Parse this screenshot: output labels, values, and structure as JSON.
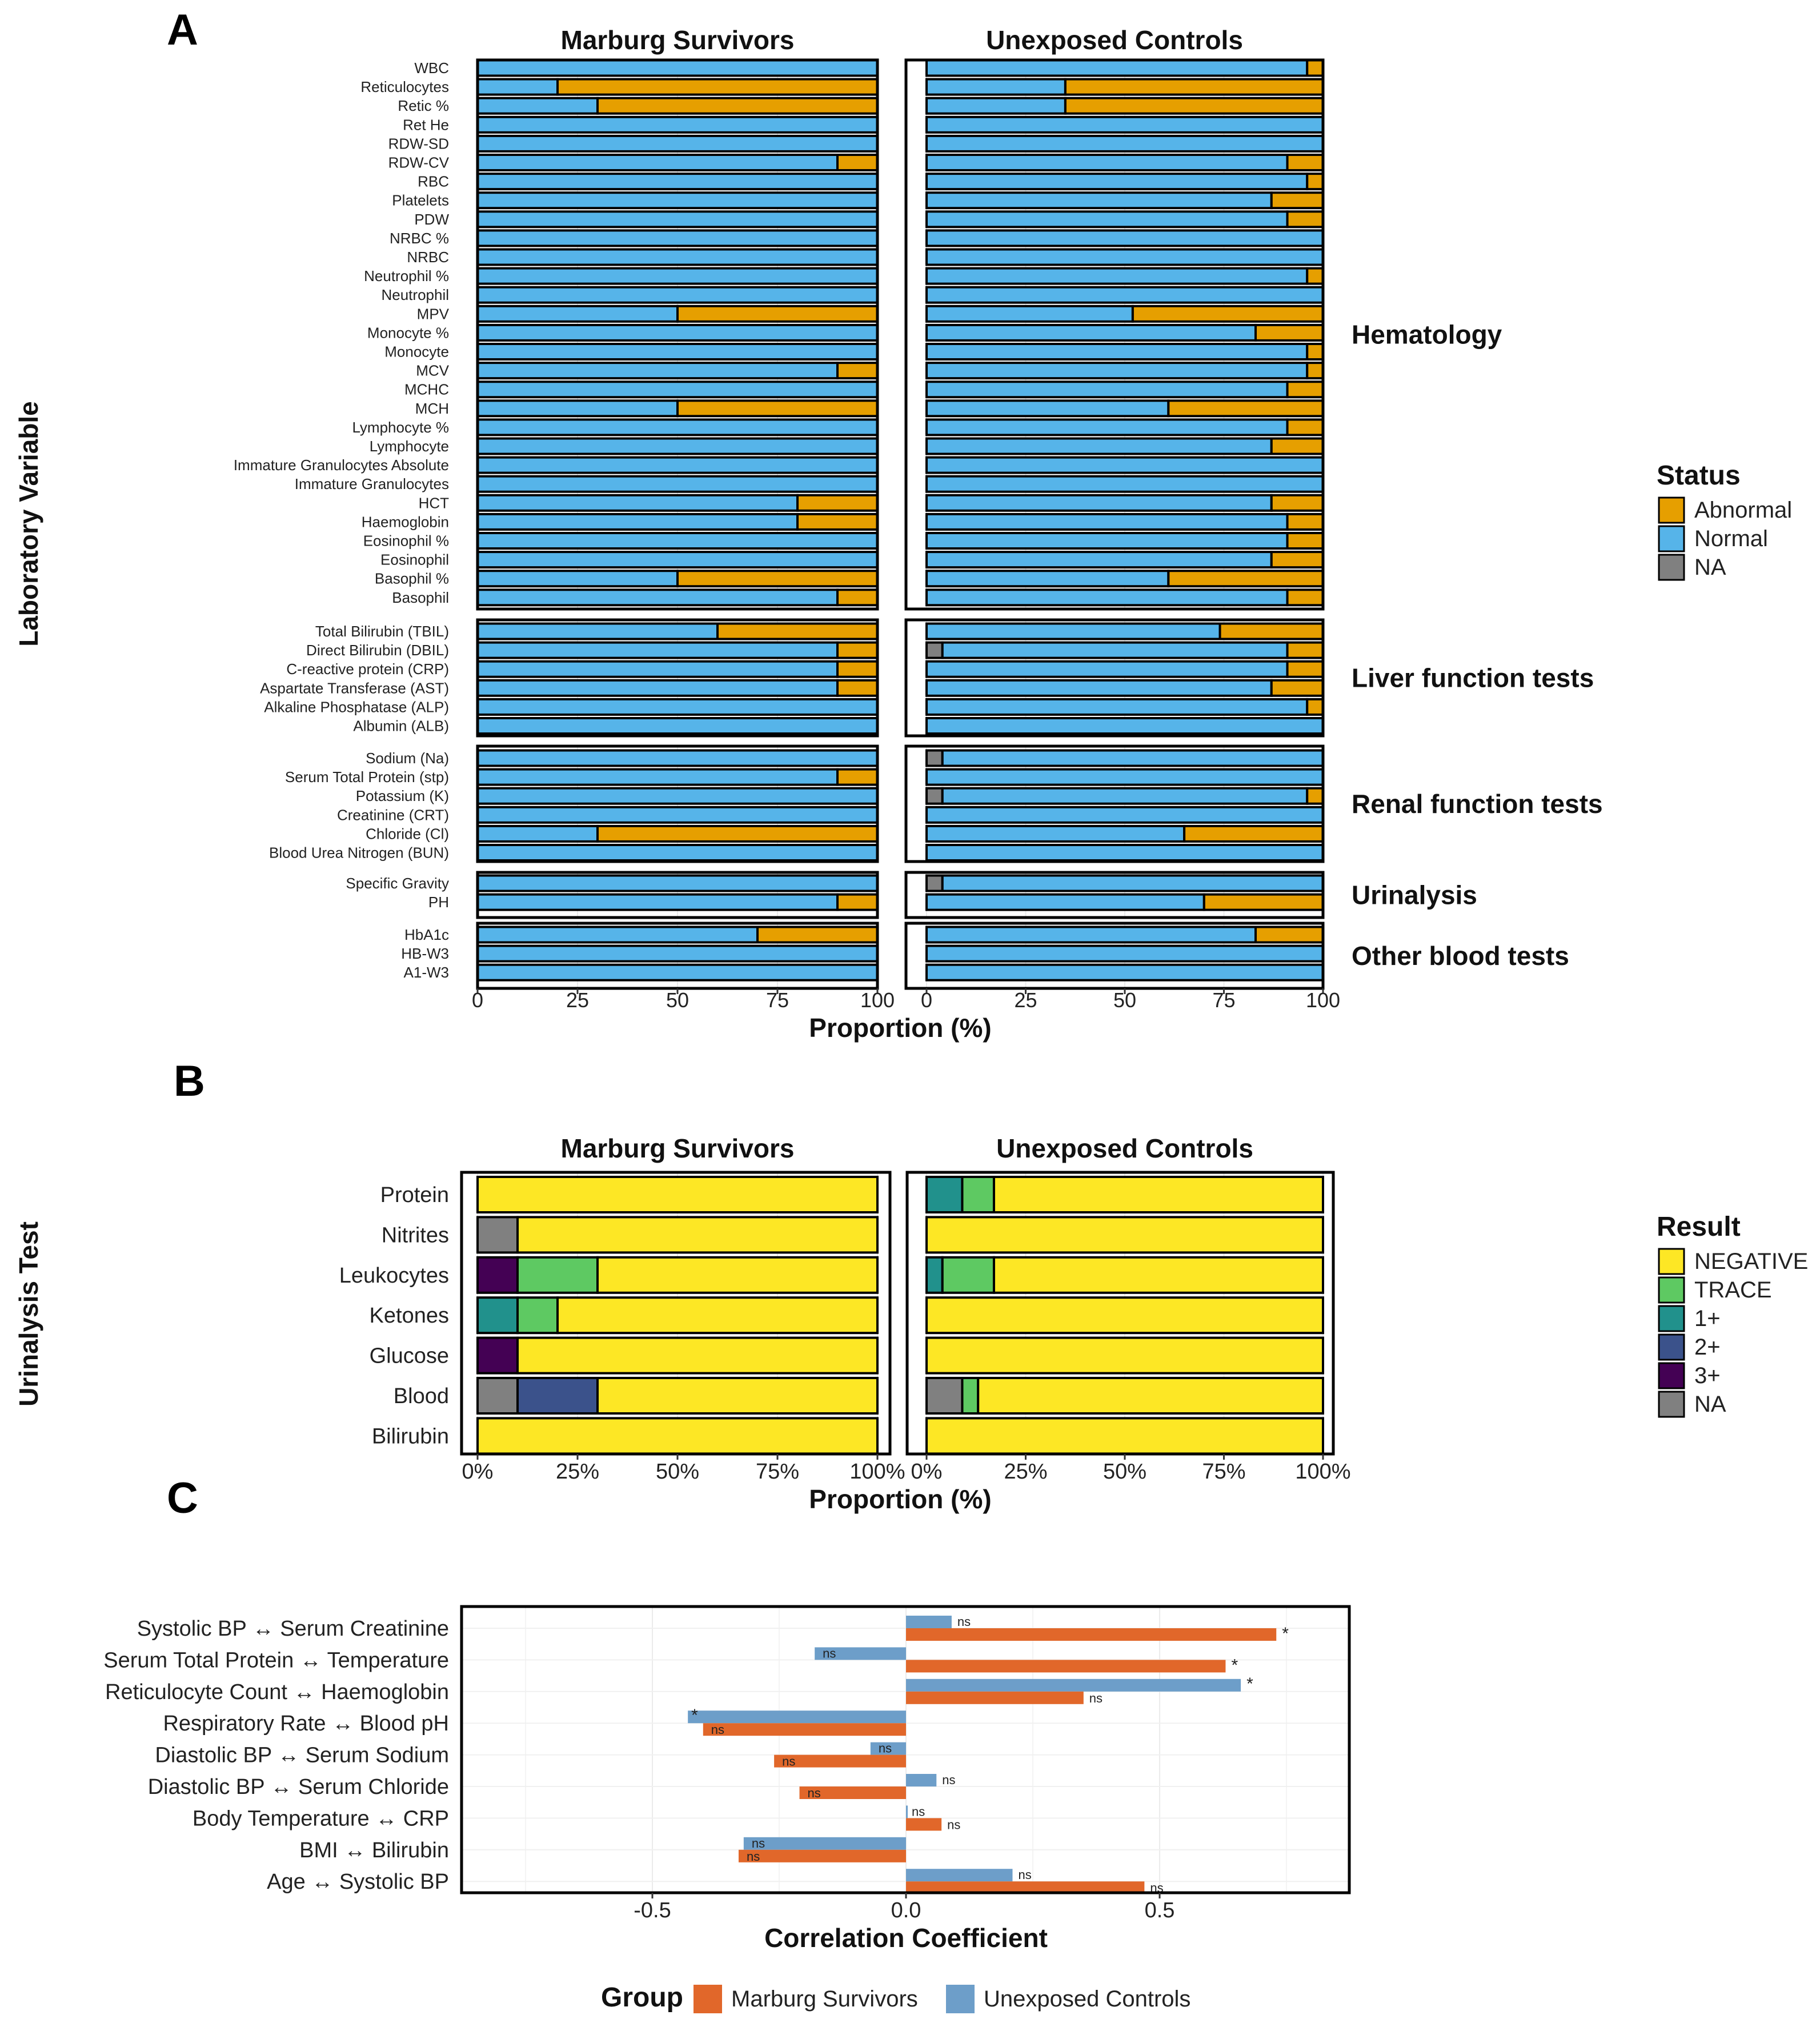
{
  "panel_labels": {
    "a": "A",
    "b": "B",
    "c": "C"
  },
  "colors": {
    "abnormal": "#E69F00",
    "normal": "#56B4E9",
    "na": "#808080",
    "negative": "#FDE725",
    "trace": "#5EC962",
    "p1": "#21918C",
    "p2": "#3B528B",
    "p3": "#440154",
    "marburg": "#E1672A",
    "controls": "#6D9EC9",
    "frame": "#000000",
    "grid": "#EBEBEB"
  },
  "chart_data": [
    {
      "type": "bar",
      "orientation": "horizontal-stacked",
      "panel": "A",
      "ylabel": "Laboratory Variable",
      "xlabel": "Proportion (%)",
      "xlim": [
        0,
        100
      ],
      "xticks": [
        "0",
        "25",
        "50",
        "75",
        "100"
      ],
      "facets": [
        "Marburg Survivors",
        "Unexposed Controls"
      ],
      "legend": {
        "title": "Status",
        "entries": [
          "Abnormal",
          "Normal",
          "NA"
        ]
      },
      "groups": [
        {
          "name": "Hematology",
          "rows": [
            {
              "label": "WBC",
              "s": [
                0,
                100,
                0
              ],
              "c": [
                0,
                96,
                4
              ]
            },
            {
              "label": "Reticulocytes",
              "s": [
                0,
                20,
                80
              ],
              "c": [
                0,
                35,
                65
              ]
            },
            {
              "label": "Retic %",
              "s": [
                0,
                30,
                70
              ],
              "c": [
                0,
                35,
                65
              ]
            },
            {
              "label": "Ret He",
              "s": [
                0,
                100,
                0
              ],
              "c": [
                0,
                100,
                0
              ]
            },
            {
              "label": "RDW-SD",
              "s": [
                0,
                100,
                0
              ],
              "c": [
                0,
                100,
                0
              ]
            },
            {
              "label": "RDW-CV",
              "s": [
                0,
                90,
                10
              ],
              "c": [
                0,
                91,
                9
              ]
            },
            {
              "label": "RBC",
              "s": [
                0,
                100,
                0
              ],
              "c": [
                0,
                96,
                4
              ]
            },
            {
              "label": "Platelets",
              "s": [
                0,
                100,
                0
              ],
              "c": [
                0,
                87,
                13
              ]
            },
            {
              "label": "PDW",
              "s": [
                0,
                100,
                0
              ],
              "c": [
                0,
                91,
                9
              ]
            },
            {
              "label": "NRBC %",
              "s": [
                0,
                100,
                0
              ],
              "c": [
                0,
                100,
                0
              ]
            },
            {
              "label": "NRBC",
              "s": [
                0,
                100,
                0
              ],
              "c": [
                0,
                100,
                0
              ]
            },
            {
              "label": "Neutrophil %",
              "s": [
                0,
                100,
                0
              ],
              "c": [
                0,
                96,
                4
              ]
            },
            {
              "label": "Neutrophil",
              "s": [
                0,
                100,
                0
              ],
              "c": [
                0,
                100,
                0
              ]
            },
            {
              "label": "MPV",
              "s": [
                0,
                50,
                50
              ],
              "c": [
                0,
                52,
                48
              ]
            },
            {
              "label": "Monocyte %",
              "s": [
                0,
                100,
                0
              ],
              "c": [
                0,
                83,
                17
              ]
            },
            {
              "label": "Monocyte",
              "s": [
                0,
                100,
                0
              ],
              "c": [
                0,
                96,
                4
              ]
            },
            {
              "label": "MCV",
              "s": [
                0,
                90,
                10
              ],
              "c": [
                0,
                96,
                4
              ]
            },
            {
              "label": "MCHC",
              "s": [
                0,
                100,
                0
              ],
              "c": [
                0,
                91,
                9
              ]
            },
            {
              "label": "MCH",
              "s": [
                0,
                50,
                50
              ],
              "c": [
                0,
                61,
                39
              ]
            },
            {
              "label": "Lymphocyte %",
              "s": [
                0,
                100,
                0
              ],
              "c": [
                0,
                91,
                9
              ]
            },
            {
              "label": "Lymphocyte",
              "s": [
                0,
                100,
                0
              ],
              "c": [
                0,
                87,
                13
              ]
            },
            {
              "label": "Immature Granulocytes Absolute",
              "s": [
                0,
                100,
                0
              ],
              "c": [
                0,
                100,
                0
              ]
            },
            {
              "label": "Immature Granulocytes",
              "s": [
                0,
                100,
                0
              ],
              "c": [
                0,
                100,
                0
              ]
            },
            {
              "label": "HCT",
              "s": [
                0,
                80,
                20
              ],
              "c": [
                0,
                87,
                13
              ]
            },
            {
              "label": "Haemoglobin",
              "s": [
                0,
                80,
                20
              ],
              "c": [
                0,
                91,
                9
              ]
            },
            {
              "label": "Eosinophil %",
              "s": [
                0,
                100,
                0
              ],
              "c": [
                0,
                91,
                9
              ]
            },
            {
              "label": "Eosinophil",
              "s": [
                0,
                100,
                0
              ],
              "c": [
                0,
                87,
                13
              ]
            },
            {
              "label": "Basophil %",
              "s": [
                0,
                50,
                50
              ],
              "c": [
                0,
                61,
                39
              ]
            },
            {
              "label": "Basophil",
              "s": [
                0,
                90,
                10
              ],
              "c": [
                0,
                91,
                9
              ]
            }
          ]
        },
        {
          "name": "Liver function tests",
          "rows": [
            {
              "label": "Total Bilirubin (TBIL)",
              "s": [
                0,
                60,
                40
              ],
              "c": [
                0,
                74,
                26
              ]
            },
            {
              "label": "Direct Bilirubin (DBIL)",
              "s": [
                0,
                90,
                10
              ],
              "c": [
                4,
                87,
                9
              ]
            },
            {
              "label": "C-reactive protein (CRP)",
              "s": [
                0,
                90,
                10
              ],
              "c": [
                0,
                91,
                9
              ]
            },
            {
              "label": "Aspartate Transferase (AST)",
              "s": [
                0,
                90,
                10
              ],
              "c": [
                0,
                87,
                13
              ]
            },
            {
              "label": "Alkaline Phosphatase (ALP)",
              "s": [
                0,
                100,
                0
              ],
              "c": [
                0,
                96,
                4
              ]
            },
            {
              "label": "Albumin (ALB)",
              "s": [
                0,
                100,
                0
              ],
              "c": [
                0,
                100,
                0
              ]
            }
          ]
        },
        {
          "name": "Renal function tests",
          "rows": [
            {
              "label": "Sodium (Na)",
              "s": [
                0,
                100,
                0
              ],
              "c": [
                4,
                96,
                0
              ]
            },
            {
              "label": "Serum Total Protein (stp)",
              "s": [
                0,
                90,
                10
              ],
              "c": [
                0,
                100,
                0
              ]
            },
            {
              "label": "Potassium (K)",
              "s": [
                0,
                100,
                0
              ],
              "c": [
                4,
                92,
                4
              ]
            },
            {
              "label": "Creatinine (CRT)",
              "s": [
                0,
                100,
                0
              ],
              "c": [
                0,
                100,
                0
              ]
            },
            {
              "label": "Chloride (Cl)",
              "s": [
                0,
                30,
                70
              ],
              "c": [
                0,
                65,
                35
              ]
            },
            {
              "label": "Blood Urea Nitrogen (BUN)",
              "s": [
                0,
                100,
                0
              ],
              "c": [
                0,
                100,
                0
              ]
            }
          ]
        },
        {
          "name": "Urinalysis",
          "rows": [
            {
              "label": "Specific Gravity",
              "s": [
                0,
                100,
                0
              ],
              "c": [
                4,
                96,
                0
              ]
            },
            {
              "label": "PH",
              "s": [
                0,
                90,
                10
              ],
              "c": [
                0,
                70,
                30
              ]
            }
          ]
        },
        {
          "name": "Other blood tests",
          "rows": [
            {
              "label": "HbA1c",
              "s": [
                0,
                70,
                30
              ],
              "c": [
                0,
                83,
                17
              ]
            },
            {
              "label": "HB-W3",
              "s": [
                0,
                100,
                0
              ],
              "c": [
                0,
                100,
                0
              ]
            },
            {
              "label": "A1-W3",
              "s": [
                0,
                100,
                0
              ],
              "c": [
                0,
                100,
                0
              ]
            }
          ]
        }
      ]
    },
    {
      "type": "bar",
      "orientation": "horizontal-stacked",
      "panel": "B",
      "ylabel": "Urinalysis Test",
      "xlabel": "Proportion (%)",
      "xlim": [
        0,
        100
      ],
      "xticks": [
        "0%",
        "25%",
        "50%",
        "75%",
        "100%"
      ],
      "facets": [
        "Marburg Survivors",
        "Unexposed Controls"
      ],
      "legend": {
        "title": "Result",
        "entries": [
          "NEGATIVE",
          "TRACE",
          "1+",
          "2+",
          "3+",
          "NA"
        ]
      },
      "stack_order": [
        "NA",
        "3+",
        "2+",
        "1+",
        "TRACE",
        "NEGATIVE"
      ],
      "rows": [
        {
          "label": "Protein",
          "s": [
            0,
            0,
            0,
            0,
            0,
            100
          ],
          "c": [
            0,
            0,
            0,
            9,
            8,
            83
          ]
        },
        {
          "label": "Nitrites",
          "s": [
            10,
            0,
            0,
            0,
            0,
            90
          ],
          "c": [
            0,
            0,
            0,
            0,
            0,
            100
          ]
        },
        {
          "label": "Leukocytes",
          "s": [
            0,
            10,
            0,
            0,
            20,
            70
          ],
          "c": [
            0,
            0,
            0,
            4,
            13,
            83
          ]
        },
        {
          "label": "Ketones",
          "s": [
            0,
            0,
            0,
            10,
            10,
            80
          ],
          "c": [
            0,
            0,
            0,
            0,
            0,
            100
          ]
        },
        {
          "label": "Glucose",
          "s": [
            0,
            10,
            0,
            0,
            0,
            90
          ],
          "c": [
            0,
            0,
            0,
            0,
            0,
            100
          ]
        },
        {
          "label": "Blood",
          "s": [
            10,
            0,
            20,
            0,
            0,
            70
          ],
          "c": [
            9,
            0,
            0,
            0,
            4,
            87
          ]
        },
        {
          "label": "Bilirubin",
          "s": [
            0,
            0,
            0,
            0,
            0,
            100
          ],
          "c": [
            0,
            0,
            0,
            0,
            0,
            100
          ]
        }
      ]
    },
    {
      "type": "bar",
      "orientation": "horizontal-grouped",
      "panel": "C",
      "xlabel": "Correlation Coefficient",
      "xlim": [
        -0.87,
        0.87
      ],
      "xticks": [
        -0.5,
        0.0,
        0.5
      ],
      "xtick_labels": [
        "-0.5",
        "0.0",
        "0.5"
      ],
      "legend": {
        "title": "Group",
        "entries": [
          "Marburg Survivors",
          "Unexposed Controls"
        ]
      },
      "rows": [
        {
          "label": "Systolic BP ↔ Serum Creatinine",
          "controls": 0.09,
          "controls_sig": "ns",
          "survivors": 0.73,
          "survivors_sig": "*"
        },
        {
          "label": "Serum Total Protein ↔ Temperature",
          "controls": -0.18,
          "controls_sig": "ns",
          "survivors": 0.63,
          "survivors_sig": "*"
        },
        {
          "label": "Reticulocyte Count ↔ Haemoglobin",
          "controls": 0.66,
          "controls_sig": "*",
          "survivors": 0.35,
          "survivors_sig": "ns"
        },
        {
          "label": "Respiratory Rate ↔ Blood pH",
          "controls": -0.43,
          "controls_sig": "*",
          "survivors": -0.4,
          "survivors_sig": "ns"
        },
        {
          "label": "Diastolic BP ↔ Serum Sodium",
          "controls": -0.07,
          "controls_sig": "ns",
          "survivors": -0.26,
          "survivors_sig": "ns"
        },
        {
          "label": "Diastolic BP ↔ Serum Chloride",
          "controls": 0.06,
          "controls_sig": "ns",
          "survivors": -0.21,
          "survivors_sig": "ns"
        },
        {
          "label": "Body Temperature ↔ CRP",
          "controls": 0.0,
          "controls_sig": "ns",
          "survivors": 0.07,
          "survivors_sig": "ns"
        },
        {
          "label": "BMI ↔ Bilirubin",
          "controls": -0.32,
          "controls_sig": "ns",
          "survivors": -0.33,
          "survivors_sig": "ns"
        },
        {
          "label": "Age ↔ Systolic BP",
          "controls": 0.21,
          "controls_sig": "ns",
          "survivors": 0.47,
          "survivors_sig": "ns"
        }
      ]
    }
  ]
}
